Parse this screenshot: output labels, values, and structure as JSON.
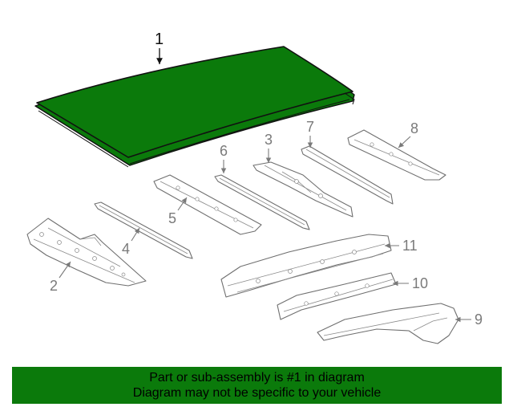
{
  "callouts": {
    "p1": "1",
    "p2": "2",
    "p3": "3",
    "p4": "4",
    "p5": "5",
    "p6": "6",
    "p7": "7",
    "p8": "8",
    "p9": "9",
    "p10": "10",
    "p11": "11"
  },
  "highlight_color": "#0b7a0b",
  "banner": {
    "line1": "Part or sub-assembly is #1 in diagram",
    "line2": "Diagram may not be specific to your vehicle"
  }
}
